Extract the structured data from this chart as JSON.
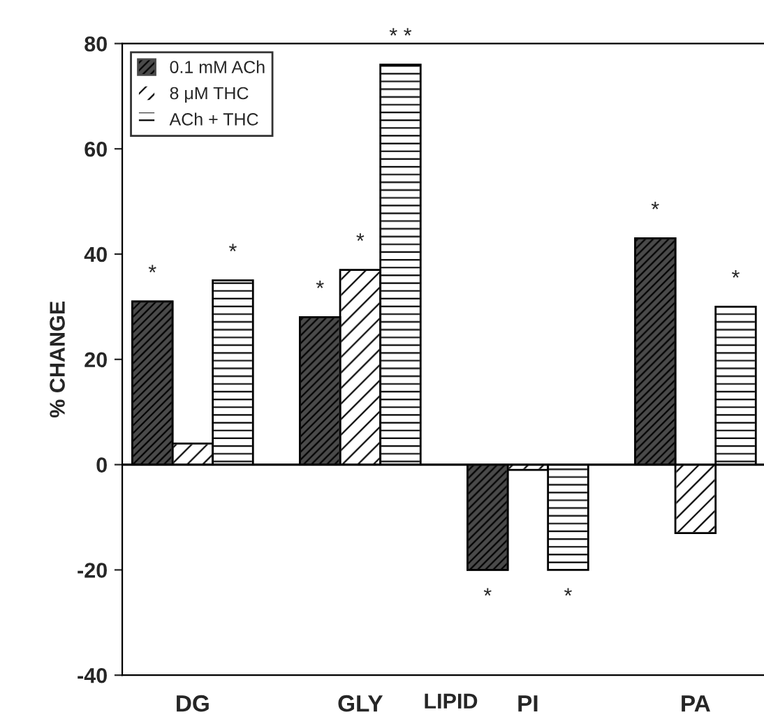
{
  "chart_data": {
    "type": "bar",
    "xlabel": "LIPID",
    "ylabel": "% CHANGE",
    "categories": [
      "DG",
      "GLY",
      "PI",
      "PA"
    ],
    "series": [
      {
        "name": "0.1 mM ACh",
        "color": "#4a4a4a",
        "values": [
          31,
          28,
          -20,
          43
        ],
        "value_labels": [
          "*",
          "*",
          "*",
          "*"
        ]
      },
      {
        "name": "8 μM THC",
        "color": "#ffffff",
        "values": [
          4,
          37,
          -1,
          -13
        ],
        "value_labels": [
          null,
          "*",
          null,
          null
        ]
      },
      {
        "name": "ACh + THC",
        "color": "#ffffff",
        "values": [
          35,
          76,
          -20,
          30
        ],
        "value_labels": [
          "*",
          "* *",
          "*",
          "*"
        ]
      }
    ],
    "ylim": [
      -40,
      80
    ],
    "yticks": [
      -40,
      -20,
      0,
      20,
      40,
      60,
      80
    ],
    "ref_lines": [
      {
        "axis": "y",
        "value": 0
      }
    ],
    "grid": false,
    "legend": "top left"
  }
}
